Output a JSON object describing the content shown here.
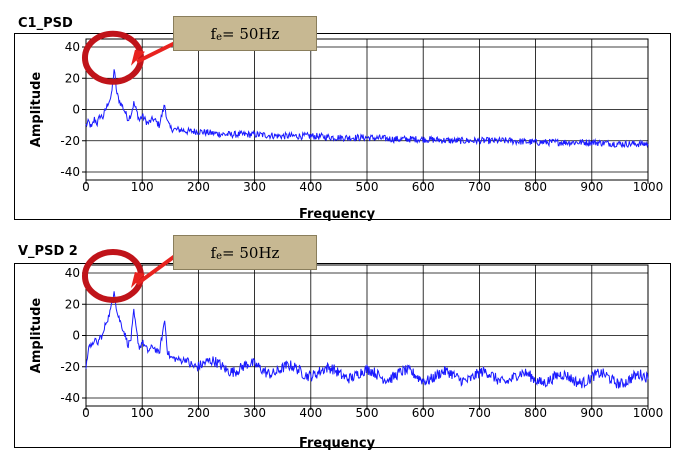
{
  "chart_data": [
    {
      "type": "line",
      "title": "C1_PSD",
      "xlabel": "Frequency",
      "ylabel": "Amplitude",
      "xlim": [
        0,
        1000
      ],
      "ylim": [
        -40,
        45
      ],
      "xticks": [
        "0",
        "100",
        "200",
        "300",
        "400",
        "500",
        "600",
        "700",
        "800",
        "900",
        "1000"
      ],
      "yticks": [
        "40",
        "20",
        "0",
        "-20",
        "-40"
      ],
      "grid": true,
      "line_color": "#1a1aff",
      "annotation": {
        "base": "f",
        "sub": "e",
        "text": " = 50Hz",
        "color_box": "#c7b892",
        "marker_color": "#c0141a",
        "arrow_color": "#e8231f"
      },
      "series": [
        {
          "x": [
            0,
            5,
            10,
            15,
            20,
            25,
            30,
            35,
            40,
            45,
            50,
            55,
            60,
            65,
            70,
            75,
            80,
            85,
            90,
            95,
            100,
            110,
            120,
            130,
            140,
            145,
            150,
            160,
            170,
            180,
            200,
            220,
            250,
            300,
            350,
            400,
            450,
            500,
            550,
            600,
            650,
            700,
            750,
            800,
            850,
            900,
            950,
            1000
          ],
          "y": [
            -10,
            -8,
            -12,
            -6,
            -9,
            -4,
            -5,
            0,
            5,
            8,
            26,
            10,
            5,
            2,
            -2,
            -6,
            -3,
            4,
            -1,
            -7,
            -4,
            -9,
            -6,
            -10,
            3,
            -8,
            -12,
            -13,
            -13,
            -14,
            -14,
            -15,
            -16,
            -16,
            -17,
            -17,
            -18,
            -18,
            -19,
            -19,
            -20,
            -20,
            -20,
            -21,
            -21,
            -21,
            -22,
            -22
          ]
        }
      ]
    },
    {
      "type": "line",
      "title": "V_PSD 2",
      "xlabel": "Frequency",
      "ylabel": "Amplitude",
      "xlim": [
        0,
        1000
      ],
      "ylim": [
        -40,
        45
      ],
      "xticks": [
        "0",
        "100",
        "200",
        "300",
        "400",
        "500",
        "600",
        "700",
        "800",
        "900",
        "1000"
      ],
      "yticks": [
        "40",
        "20",
        "0",
        "-20",
        "-40"
      ],
      "grid": true,
      "line_color": "#1a1aff",
      "annotation": {
        "base": "f",
        "sub": "e",
        "text": " = 50Hz",
        "color_box": "#c7b892",
        "marker_color": "#c0141a",
        "arrow_color": "#e8231f"
      },
      "series": [
        {
          "x": [
            0,
            5,
            10,
            15,
            20,
            25,
            30,
            35,
            40,
            45,
            50,
            55,
            60,
            65,
            70,
            75,
            80,
            85,
            90,
            95,
            100,
            110,
            120,
            130,
            140,
            145,
            150,
            160,
            170,
            180,
            200,
            220,
            250,
            300,
            350,
            400,
            450,
            500,
            550,
            600,
            650,
            700,
            750,
            800,
            850,
            900,
            950,
            1000
          ],
          "y": [
            -22,
            -5,
            -8,
            -2,
            -6,
            -1,
            0,
            8,
            12,
            18,
            30,
            15,
            10,
            5,
            0,
            -6,
            -2,
            15,
            2,
            -8,
            -4,
            -10,
            -7,
            -12,
            10,
            -10,
            -14,
            -15,
            -16,
            -15,
            -18,
            -19,
            -20,
            -21,
            -22,
            -23,
            -24,
            -25,
            -25,
            -26,
            -26,
            -26,
            -27,
            -27,
            -28,
            -27,
            -28,
            -28
          ]
        }
      ]
    }
  ]
}
